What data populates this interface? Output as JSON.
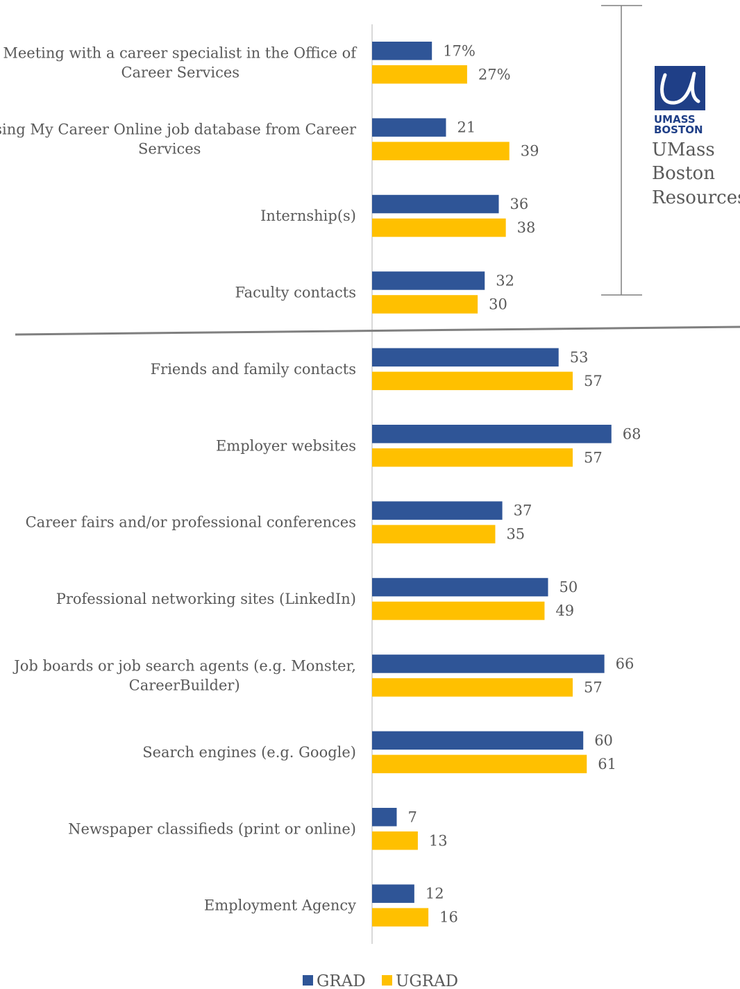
{
  "chart_data": {
    "type": "bar",
    "orientation": "horizontal",
    "categories": [
      [
        "Meeting with a career specialist in the Office of",
        "Career Services"
      ],
      [
        "Using My Career Online job database from Career",
        "Services"
      ],
      [
        "Internship(s)"
      ],
      [
        "Faculty contacts"
      ],
      [
        "Friends and family contacts"
      ],
      [
        "Employer websites"
      ],
      [
        "Career fairs and/or professional conferences"
      ],
      [
        "Professional networking sites (LinkedIn)"
      ],
      [
        "Job boards or job search agents (e.g. Monster,",
        "CareerBuilder)"
      ],
      [
        "Search engines (e.g. Google)"
      ],
      [
        "Newspaper classifieds (print or online)"
      ],
      [
        "Employment Agency"
      ]
    ],
    "series": [
      {
        "name": "GRAD",
        "color": "#2f5597",
        "values": [
          17,
          21,
          36,
          32,
          53,
          68,
          37,
          50,
          66,
          60,
          7,
          12
        ],
        "labels": [
          "17%",
          "21",
          "36",
          "32",
          "53",
          "68",
          "37",
          "50",
          "66",
          "60",
          "7",
          "12"
        ]
      },
      {
        "name": "UGRAD",
        "color": "#ffc000",
        "values": [
          27,
          39,
          38,
          30,
          57,
          57,
          35,
          49,
          57,
          61,
          13,
          16
        ],
        "labels": [
          "27%",
          "39",
          "38",
          "30",
          "57",
          "57",
          "35",
          "49",
          "57",
          "61",
          "13",
          "16"
        ]
      }
    ],
    "xlim": [
      0,
      80
    ],
    "grid": false,
    "legend": "bottom-center",
    "group_annotation": {
      "text_lines": [
        "UMass",
        "Boston",
        "Resources"
      ],
      "applies_to_first_n_categories": 4,
      "logo_text": [
        "UMASS",
        "BOSTON"
      ]
    }
  },
  "colors": {
    "grad": "#2f5597",
    "ugrad": "#ffc000",
    "text": "#595959",
    "divider": "#7f7f7f",
    "axis": "#d9d9d9"
  }
}
